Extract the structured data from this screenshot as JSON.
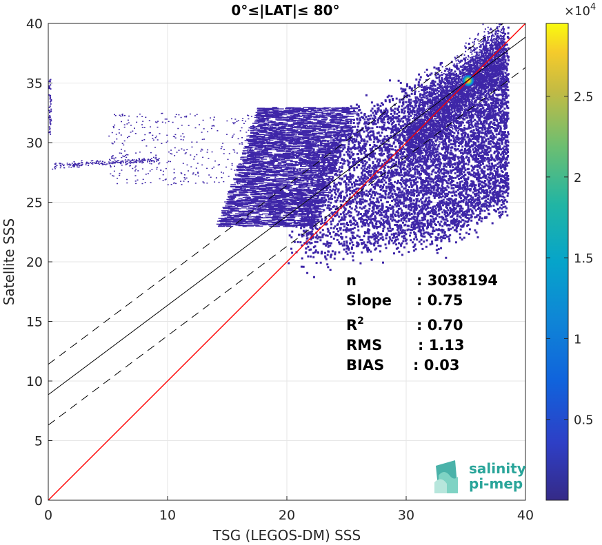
{
  "chart_data": {
    "type": "scatter",
    "subtype": "2d-density-histogram",
    "title": "0°≤|LAT|≤ 80°",
    "xlabel": "TSG (LEGOS-DM) SSS",
    "ylabel": "Satellite SSS",
    "xlim": [
      0,
      40
    ],
    "ylim": [
      0,
      40
    ],
    "x_ticks": [
      "0",
      "10",
      "20",
      "30",
      "40"
    ],
    "y_ticks": [
      "0",
      "5",
      "10",
      "15",
      "20",
      "25",
      "30",
      "35",
      "40"
    ],
    "grid": true,
    "colorbar": {
      "multiplier": "×10",
      "exponent": "4",
      "range": [
        0,
        29500
      ],
      "ticks": [
        "0.5",
        "1",
        "1.5",
        "2",
        "2.5"
      ],
      "tick_values": [
        5000,
        10000,
        15000,
        20000,
        25000
      ],
      "colormap": "parula"
    },
    "lines": [
      {
        "role": "identity",
        "color": "#ff0000",
        "style": "solid",
        "x": [
          0,
          40
        ],
        "y": [
          0,
          40
        ]
      },
      {
        "role": "regression",
        "color": "#000000",
        "style": "solid",
        "x": [
          0,
          40
        ],
        "y": [
          8.85,
          38.85
        ]
      },
      {
        "role": "upper-bound",
        "color": "#000000",
        "style": "dashed",
        "x": [
          0,
          40
        ],
        "y": [
          11.4,
          41.4
        ]
      },
      {
        "role": "lower-bound",
        "color": "#000000",
        "style": "dashed",
        "x": [
          0,
          40
        ],
        "y": [
          6.3,
          36.3
        ]
      }
    ],
    "density_peak": {
      "x": 35.2,
      "y": 35.2
    },
    "stats": [
      {
        "label": "n",
        "value": ": 3038194"
      },
      {
        "label": "Slope",
        "value": ": 0.75"
      },
      {
        "label": "R",
        "sup": "2",
        "value": ": 0.70"
      },
      {
        "label": "RMS",
        "value": ": 1.13"
      },
      {
        "label": "BIAS",
        "value": ": 0.03"
      }
    ]
  },
  "logo": {
    "line1": "salinity",
    "line2": "pi-mep"
  },
  "colors": {
    "identity_line": "#ff0000",
    "scatter": "#3e26a8",
    "logo": "#2aa59a"
  }
}
